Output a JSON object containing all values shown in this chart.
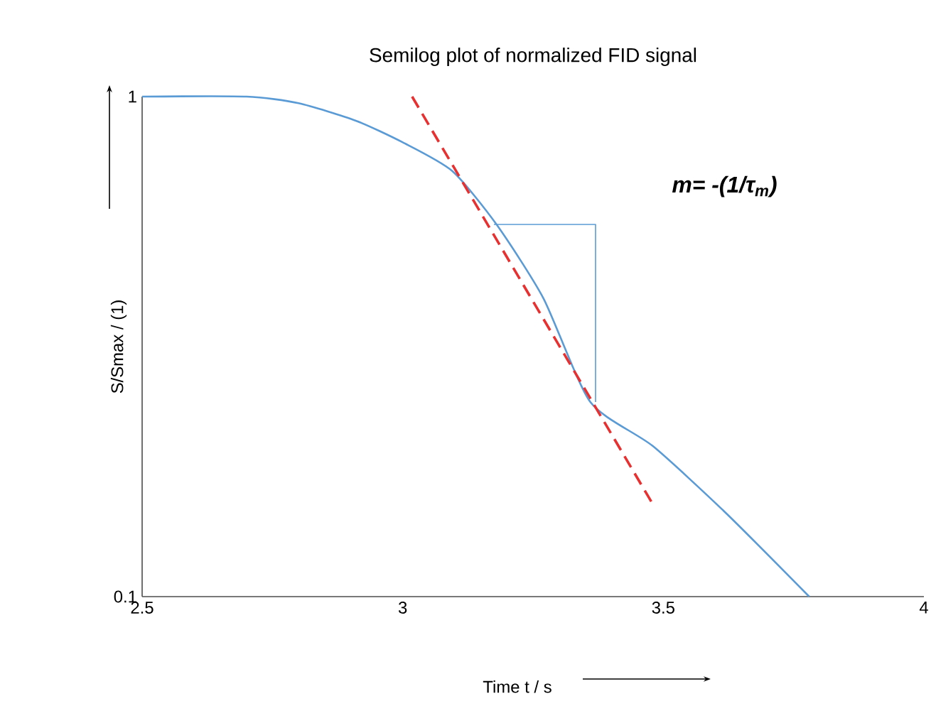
{
  "chart_data": {
    "type": "line",
    "title": "Semilog plot of normalized  FID signal",
    "xlabel": "Time t / s",
    "ylabel": "S/Smax  / (1)",
    "log": "y",
    "grid": false,
    "marker": "none",
    "xlim": [
      2.5,
      4
    ],
    "ylim": [
      0.1,
      1
    ],
    "xticks": [
      2.5,
      3,
      3.5,
      4
    ],
    "yticks": [
      1,
      0.1
    ],
    "annotations": [
      "m= -(1/τ$_{m}$)"
    ],
    "series": [
      {
        "color": "#5b9bd5",
        "x": [
          2.5,
          2.7,
          2.8,
          2.91,
          3.0,
          3.095,
          3.18,
          3.27,
          3.36,
          3.48,
          3.62,
          3.78
        ],
        "values": [
          1,
          1,
          0.97,
          0.895,
          0.81,
          0.71,
          0.555,
          0.395,
          0.245,
          0.2,
          0.147,
          0.1
        ]
      },
      {
        "color": "#e83030",
        "line_style": "dashed",
        "x": [
          3.018,
          3.48
        ],
        "values": [
          1,
          0.153
        ]
      },
      {
        "color": "#5b9bd5",
        "x": [
          3.175,
          3.37,
          3.37
        ],
        "values": [
          0.555,
          0.555,
          0.245
        ]
      }
    ]
  }
}
